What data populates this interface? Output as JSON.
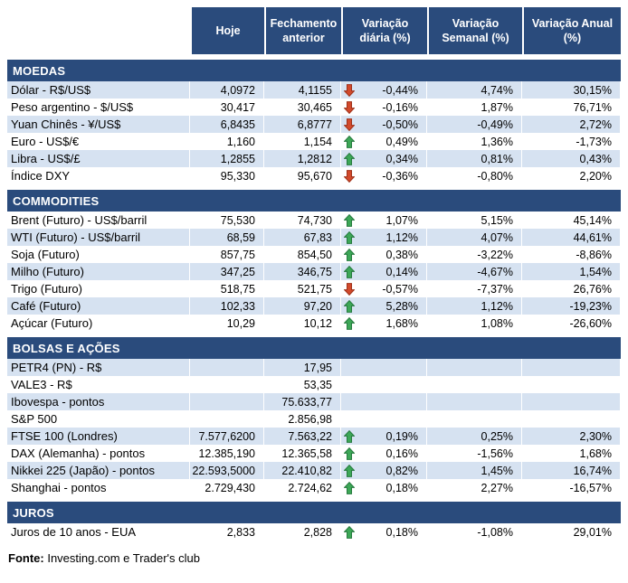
{
  "colors": {
    "header_bg": "#2A4B7C",
    "section_bg": "#2A4B7C",
    "header_text": "#FFFFFF",
    "row_shaded_bg": "#D6E2F1",
    "up_arrow": "#3DA757",
    "up_arrow_outline": "#267A3E",
    "down_arrow": "#D24A2C",
    "down_arrow_outline": "#9E3119",
    "text": "#000000"
  },
  "footer": {
    "label": "Fonte:",
    "text": " Investing.com e Trader's club"
  },
  "chart_data": {
    "type": "table",
    "columns": [
      "Hoje",
      "Fechamento anterior",
      "Variação diária (%)",
      "Variação Semanal (%)",
      "Variação Anual (%)"
    ],
    "sections": [
      {
        "title": "MOEDAS",
        "rows": [
          {
            "label": "Dólar - R$/US$",
            "hoje": "4,0972",
            "fechamento_anterior": "4,1155",
            "arrow": "down",
            "variacao_diaria": "-0,44%",
            "variacao_semanal": "4,74%",
            "variacao_anual": "30,15%",
            "shaded": true
          },
          {
            "label": "Peso argentino - $/US$",
            "hoje": "30,417",
            "fechamento_anterior": "30,465",
            "arrow": "down",
            "variacao_diaria": "-0,16%",
            "variacao_semanal": "1,87%",
            "variacao_anual": "76,71%",
            "shaded": false
          },
          {
            "label": "Yuan Chinês - ¥/US$",
            "hoje": "6,8435",
            "fechamento_anterior": "6,8777",
            "arrow": "down",
            "variacao_diaria": "-0,50%",
            "variacao_semanal": "-0,49%",
            "variacao_anual": "2,72%",
            "shaded": true
          },
          {
            "label": "Euro - US$/€",
            "hoje": "1,160",
            "fechamento_anterior": "1,154",
            "arrow": "up",
            "variacao_diaria": "0,49%",
            "variacao_semanal": "1,36%",
            "variacao_anual": "-1,73%",
            "shaded": false
          },
          {
            "label": "Libra - US$/£",
            "hoje": "1,2855",
            "fechamento_anterior": "1,2812",
            "arrow": "up",
            "variacao_diaria": "0,34%",
            "variacao_semanal": "0,81%",
            "variacao_anual": "0,43%",
            "shaded": true
          },
          {
            "label": "Índice DXY",
            "hoje": "95,330",
            "fechamento_anterior": "95,670",
            "arrow": "down",
            "variacao_diaria": "-0,36%",
            "variacao_semanal": "-0,80%",
            "variacao_anual": "2,20%",
            "shaded": false
          }
        ]
      },
      {
        "title": "COMMODITIES",
        "rows": [
          {
            "label": "Brent (Futuro) - US$/barril",
            "hoje": "75,530",
            "fechamento_anterior": "74,730",
            "arrow": "up",
            "variacao_diaria": "1,07%",
            "variacao_semanal": "5,15%",
            "variacao_anual": "45,14%",
            "shaded": false
          },
          {
            "label": "WTI (Futuro) - US$/barril",
            "hoje": "68,59",
            "fechamento_anterior": "67,83",
            "arrow": "up",
            "variacao_diaria": "1,12%",
            "variacao_semanal": "4,07%",
            "variacao_anual": "44,61%",
            "shaded": true
          },
          {
            "label": "Soja (Futuro)",
            "hoje": "857,75",
            "fechamento_anterior": "854,50",
            "arrow": "up",
            "variacao_diaria": "0,38%",
            "variacao_semanal": "-3,22%",
            "variacao_anual": "-8,86%",
            "shaded": false
          },
          {
            "label": "Milho (Futuro)",
            "hoje": "347,25",
            "fechamento_anterior": "346,75",
            "arrow": "up",
            "variacao_diaria": "0,14%",
            "variacao_semanal": "-4,67%",
            "variacao_anual": "1,54%",
            "shaded": true
          },
          {
            "label": "Trigo (Futuro)",
            "hoje": "518,75",
            "fechamento_anterior": "521,75",
            "arrow": "down",
            "variacao_diaria": "-0,57%",
            "variacao_semanal": "-7,37%",
            "variacao_anual": "26,76%",
            "shaded": false
          },
          {
            "label": "Café (Futuro)",
            "hoje": "102,33",
            "fechamento_anterior": "97,20",
            "arrow": "up",
            "variacao_diaria": "5,28%",
            "variacao_semanal": "1,12%",
            "variacao_anual": "-19,23%",
            "shaded": true
          },
          {
            "label": "Açúcar (Futuro)",
            "hoje": "10,29",
            "fechamento_anterior": "10,12",
            "arrow": "up",
            "variacao_diaria": "1,68%",
            "variacao_semanal": "1,08%",
            "variacao_anual": "-26,60%",
            "shaded": false
          }
        ]
      },
      {
        "title": "BOLSAS E AÇÕES",
        "rows": [
          {
            "label": "PETR4 (PN) - R$",
            "hoje": "",
            "fechamento_anterior": "17,95",
            "arrow": null,
            "variacao_diaria": "",
            "variacao_semanal": "",
            "variacao_anual": "",
            "shaded": true
          },
          {
            "label": "VALE3 - R$",
            "hoje": "",
            "fechamento_anterior": "53,35",
            "arrow": null,
            "variacao_diaria": "",
            "variacao_semanal": "",
            "variacao_anual": "",
            "shaded": false
          },
          {
            "label": "Ibovespa - pontos",
            "hoje": "",
            "fechamento_anterior": "75.633,77",
            "arrow": null,
            "variacao_diaria": "",
            "variacao_semanal": "",
            "variacao_anual": "",
            "shaded": true
          },
          {
            "label": "S&P 500",
            "hoje": "",
            "fechamento_anterior": "2.856,98",
            "arrow": null,
            "variacao_diaria": "",
            "variacao_semanal": "",
            "variacao_anual": "",
            "shaded": false
          },
          {
            "label": "FTSE 100 (Londres)",
            "hoje": "7.577,6200",
            "fechamento_anterior": "7.563,22",
            "arrow": "up",
            "variacao_diaria": "0,19%",
            "variacao_semanal": "0,25%",
            "variacao_anual": "2,30%",
            "shaded": true
          },
          {
            "label": "DAX (Alemanha) - pontos",
            "hoje": "12.385,190",
            "fechamento_anterior": "12.365,58",
            "arrow": "up",
            "variacao_diaria": "0,16%",
            "variacao_semanal": "-1,56%",
            "variacao_anual": "1,68%",
            "shaded": false
          },
          {
            "label": "Nikkei 225 (Japão) - pontos",
            "hoje": "22.593,5000",
            "fechamento_anterior": "22.410,82",
            "arrow": "up",
            "variacao_diaria": "0,82%",
            "variacao_semanal": "1,45%",
            "variacao_anual": "16,74%",
            "shaded": true
          },
          {
            "label": "Shanghai - pontos",
            "hoje": "2.729,430",
            "fechamento_anterior": "2.724,62",
            "arrow": "up",
            "variacao_diaria": "0,18%",
            "variacao_semanal": "2,27%",
            "variacao_anual": "-16,57%",
            "shaded": false
          }
        ]
      },
      {
        "title": "JUROS",
        "rows": [
          {
            "label": "Juros de 10 anos - EUA",
            "hoje": "2,833",
            "fechamento_anterior": "2,828",
            "arrow": "up",
            "variacao_diaria": "0,18%",
            "variacao_semanal": "-1,08%",
            "variacao_anual": "29,01%",
            "shaded": false
          }
        ]
      }
    ]
  }
}
